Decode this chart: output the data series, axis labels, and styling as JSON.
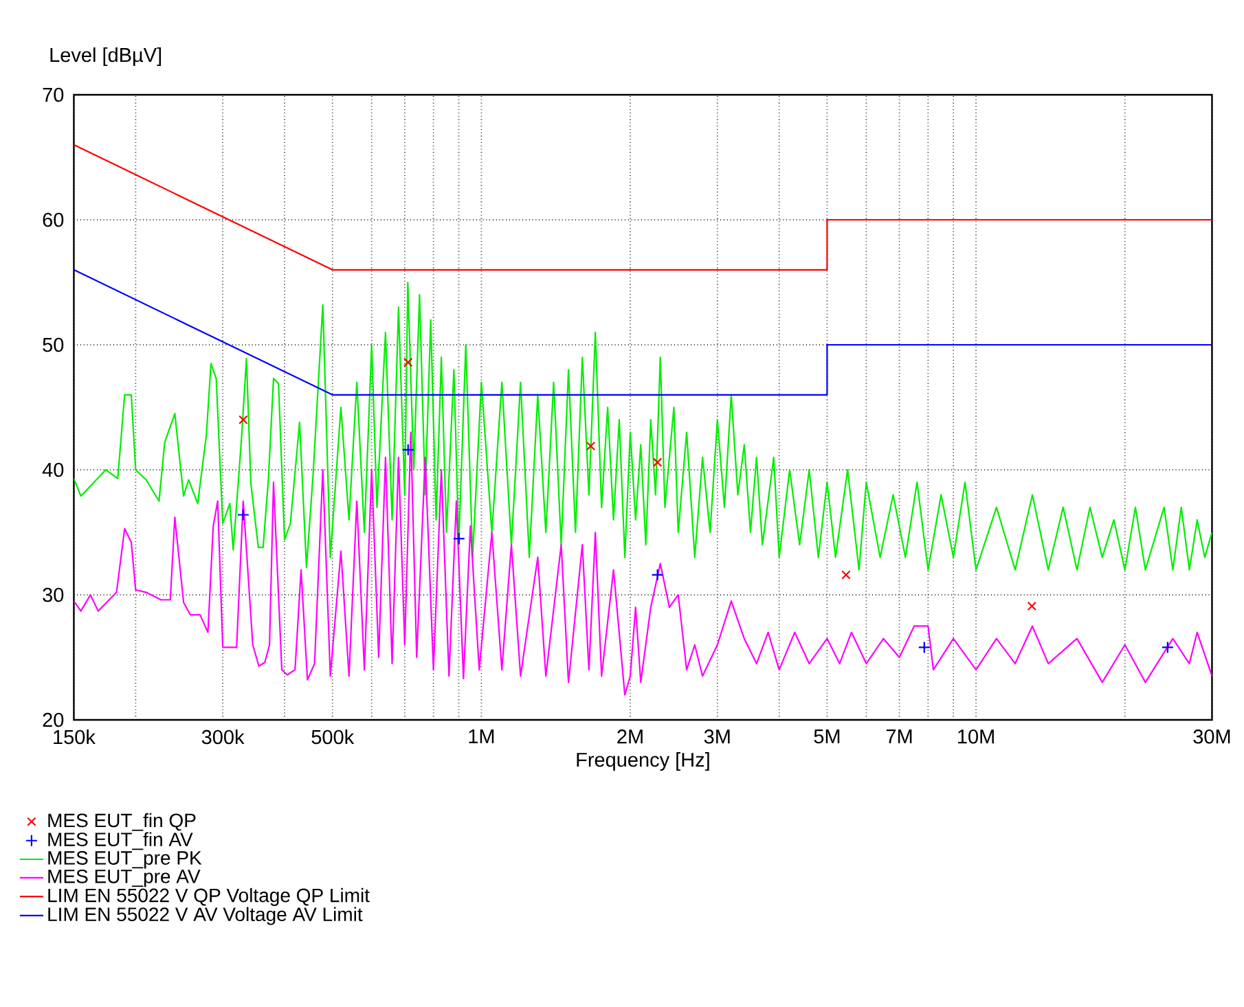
{
  "chart_data": {
    "type": "line",
    "xlabel": "Frequency [Hz]",
    "ylabel": "Level [dBµV]",
    "log": "x",
    "grid": true,
    "legend": "bottom",
    "xlim": [
      150000,
      30000000
    ],
    "xticks": [
      {
        "value": 150000,
        "label": "150k"
      },
      {
        "value": 200000,
        "label": null
      },
      {
        "value": 300000,
        "label": "300k"
      },
      {
        "value": 400000,
        "label": null
      },
      {
        "value": 500000,
        "label": "500k"
      },
      {
        "value": 600000,
        "label": null
      },
      {
        "value": 700000,
        "label": null
      },
      {
        "value": 800000,
        "label": null
      },
      {
        "value": 900000,
        "label": null
      },
      {
        "value": 1000000,
        "label": "1M"
      },
      {
        "value": 2000000,
        "label": "2M"
      },
      {
        "value": 3000000,
        "label": "3M"
      },
      {
        "value": 4000000,
        "label": null
      },
      {
        "value": 5000000,
        "label": "5M"
      },
      {
        "value": 6000000,
        "label": null
      },
      {
        "value": 7000000,
        "label": "7M"
      },
      {
        "value": 8000000,
        "label": null
      },
      {
        "value": 9000000,
        "label": null
      },
      {
        "value": 10000000,
        "label": "10M"
      },
      {
        "value": 20000000,
        "label": null
      },
      {
        "value": 30000000,
        "label": "30M"
      }
    ],
    "ylim": [
      20,
      70
    ],
    "yticks": [
      20,
      30,
      40,
      50,
      60,
      70
    ],
    "series": [
      {
        "name": "MES EUT_fin QP",
        "type": "scatter",
        "marker": "cross",
        "color": "#ff0000",
        "x": [
          330000,
          711000,
          1664000,
          2270000,
          5460000,
          12970000
        ],
        "values": [
          44.0,
          48.6,
          41.9,
          40.6,
          31.6,
          29.1
        ]
      },
      {
        "name": "MES EUT_fin AV",
        "type": "scatter",
        "marker": "plus",
        "color": "#0000ff",
        "x": [
          330000,
          711000,
          901000,
          2270000,
          7860000,
          24400000
        ],
        "values": [
          36.4,
          41.6,
          34.5,
          31.6,
          25.8,
          25.8
        ]
      },
      {
        "name": "MES EUT_pre PK",
        "marker": "none",
        "color": "#00ee00",
        "x": [
          150000,
          155000,
          174000,
          184000,
          190000,
          196000,
          200000,
          210000,
          223000,
          229000,
          240000,
          250000,
          256000,
          267000,
          278000,
          284000,
          291000,
          300000,
          310000,
          315000,
          327000,
          335000,
          342000,
          354000,
          362000,
          371000,
          380000,
          389000,
          400000,
          411000,
          429000,
          443000,
          457000,
          478000,
          495000,
          520000,
          540000,
          560000,
          580000,
          600000,
          615000,
          640000,
          660000,
          680000,
          700000,
          710000,
          730000,
          750000,
          770000,
          790000,
          810000,
          830000,
          850000,
          880000,
          900000,
          930000,
          960000,
          1000000,
          1050000,
          1100000,
          1150000,
          1200000,
          1250000,
          1300000,
          1350000,
          1400000,
          1450000,
          1500000,
          1550000,
          1600000,
          1650000,
          1700000,
          1750000,
          1800000,
          1850000,
          1900000,
          1950000,
          2000000,
          2050000,
          2100000,
          2150000,
          2200000,
          2250000,
          2300000,
          2350000,
          2450000,
          2500000,
          2600000,
          2700000,
          2800000,
          2900000,
          3000000,
          3100000,
          3200000,
          3300000,
          3400000,
          3500000,
          3600000,
          3700000,
          3900000,
          4000000,
          4200000,
          4400000,
          4600000,
          4800000,
          5000000,
          5200000,
          5500000,
          5800000,
          6000000,
          6400000,
          6800000,
          7200000,
          7600000,
          8000000,
          8500000,
          9000000,
          9500000,
          10000000,
          11000000,
          12000000,
          13000000,
          14000000,
          15000000,
          16000000,
          17000000,
          18000000,
          19000000,
          20000000,
          21000000,
          22000000,
          24000000,
          25000000,
          26000000,
          27000000,
          28000000,
          29000000,
          30000000
        ],
        "values": [
          39.3,
          37.9,
          40.0,
          39.3,
          46.0,
          46.0,
          40.0,
          39.2,
          37.5,
          42.2,
          44.5,
          37.9,
          39.2,
          37.3,
          42.8,
          48.5,
          47.3,
          35.7,
          37.3,
          33.6,
          42.2,
          48.9,
          38.9,
          33.8,
          33.8,
          39.2,
          47.3,
          46.9,
          34.4,
          35.7,
          43.8,
          32.2,
          39.7,
          53.2,
          33.0,
          45,
          36,
          47,
          35,
          50,
          37,
          51,
          36,
          53,
          38,
          55,
          40,
          54,
          38,
          52,
          36,
          49,
          35,
          48,
          34,
          50,
          33,
          47,
          35,
          47,
          34,
          47,
          33,
          46,
          35,
          47,
          34,
          48,
          35,
          49,
          38,
          51,
          37,
          45,
          36,
          44,
          33,
          43,
          36,
          42,
          34,
          44,
          38,
          49,
          37,
          45,
          35,
          43,
          33,
          41,
          35,
          44,
          37,
          46,
          38,
          42,
          35,
          41,
          34,
          41,
          33,
          40,
          34,
          40,
          33,
          39,
          33,
          40,
          32,
          39,
          33,
          38,
          33,
          39,
          32,
          38,
          33,
          39,
          32,
          37,
          32,
          38,
          32,
          37,
          32,
          37,
          33,
          36,
          32,
          37,
          32,
          37,
          32,
          37,
          32,
          36,
          33,
          35
        ]
      },
      {
        "name": "MES EUT_pre AV",
        "marker": "none",
        "color": "#ff00ff",
        "x": [
          150000,
          155000,
          162000,
          168000,
          183000,
          190000,
          196000,
          200000,
          210000,
          225000,
          235000,
          240000,
          250000,
          258000,
          270000,
          280000,
          287000,
          293000,
          300000,
          320000,
          330000,
          345000,
          355000,
          365000,
          373000,
          380000,
          395000,
          405000,
          420000,
          432000,
          445000,
          460000,
          478000,
          495000,
          520000,
          540000,
          560000,
          580000,
          600000,
          620000,
          640000,
          660000,
          680000,
          700000,
          720000,
          740000,
          770000,
          800000,
          830000,
          860000,
          890000,
          920000,
          950000,
          990000,
          1050000,
          1100000,
          1150000,
          1200000,
          1300000,
          1350000,
          1450000,
          1500000,
          1600000,
          1650000,
          1700000,
          1750000,
          1850000,
          1950000,
          2000000,
          2050000,
          2100000,
          2200000,
          2300000,
          2400000,
          2500000,
          2600000,
          2700000,
          2800000,
          3000000,
          3200000,
          3400000,
          3600000,
          3800000,
          4000000,
          4300000,
          4600000,
          5000000,
          5300000,
          5600000,
          6000000,
          6500000,
          7000000,
          7500000,
          8000000,
          8200000,
          9000000,
          10000000,
          11000000,
          12000000,
          13000000,
          14000000,
          16000000,
          18000000,
          20000000,
          22000000,
          25000000,
          27000000,
          28000000,
          30000000
        ],
        "values": [
          29.5,
          28.7,
          30.0,
          28.7,
          30.2,
          35.3,
          34.2,
          30.4,
          30.2,
          29.6,
          29.6,
          36.2,
          29.4,
          28.4,
          28.4,
          27.0,
          35.5,
          37.5,
          25.8,
          25.8,
          37.5,
          26.0,
          24.3,
          24.6,
          26.0,
          39.0,
          24.0,
          23.6,
          24.0,
          32.0,
          23.2,
          24.5,
          40.0,
          23.5,
          33.5,
          23.5,
          37.5,
          24,
          40,
          25,
          41,
          24.5,
          41,
          26,
          43,
          25,
          41,
          24,
          40,
          23.5,
          37.5,
          23.3,
          35.5,
          24,
          35,
          24,
          34,
          23.5,
          33,
          23.5,
          34,
          23,
          34,
          24,
          35,
          23.5,
          32,
          22,
          23.5,
          29,
          23,
          29,
          32.5,
          29,
          30,
          24,
          26,
          23.5,
          26,
          29.5,
          26.5,
          24.5,
          27,
          24,
          27,
          24.5,
          26.5,
          24.5,
          27,
          24.5,
          26.5,
          25,
          27.5,
          27.5,
          24,
          26.5,
          24,
          26.5,
          24.5,
          27.5,
          24.5,
          26.5,
          23,
          26,
          23,
          26.5,
          24.5,
          27,
          23.5
        ]
      },
      {
        "name": "LIM EN 55022 V QP Voltage QP Limit",
        "marker": "none",
        "color": "#ff0000",
        "x": [
          150000,
          500000,
          5000000,
          5000000,
          30000000
        ],
        "values": [
          66,
          56,
          56,
          60,
          60
        ]
      },
      {
        "name": "LIM EN 55022 V AV Voltage AV Limit",
        "marker": "none",
        "color": "#0000ff",
        "x": [
          150000,
          500000,
          5000000,
          5000000,
          30000000
        ],
        "values": [
          56,
          46,
          46,
          50,
          50
        ]
      }
    ]
  }
}
